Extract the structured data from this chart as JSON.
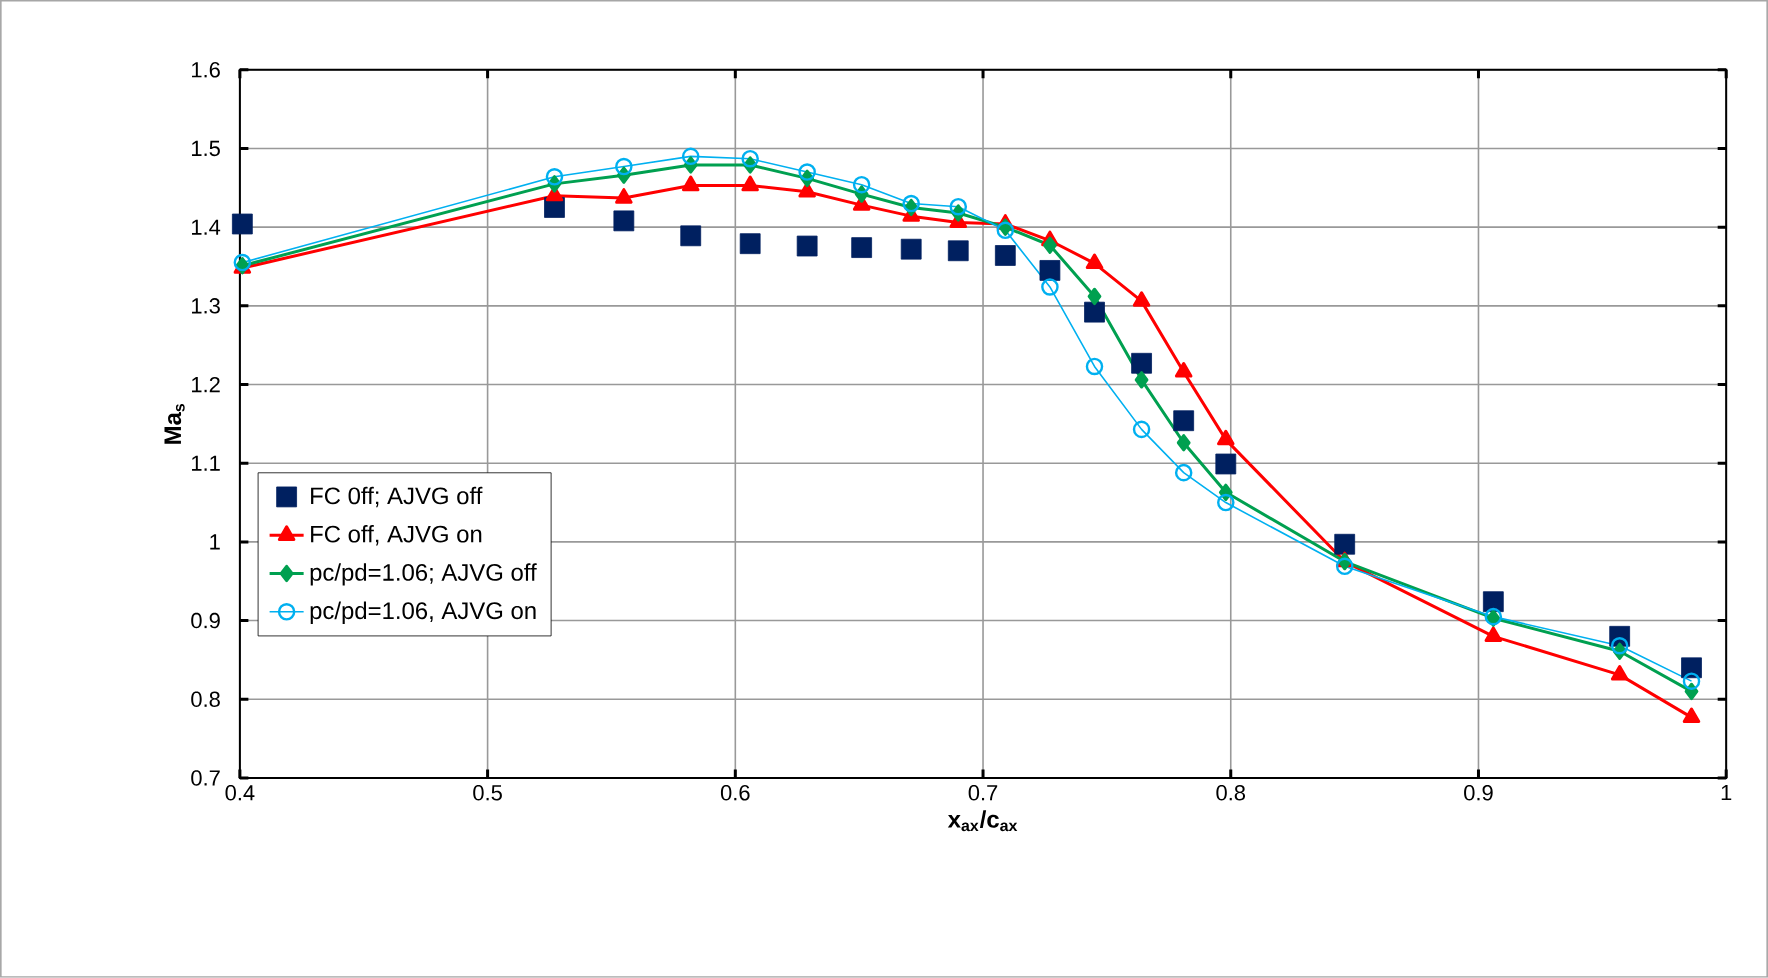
{
  "chart_data": {
    "type": "line",
    "xlabel": "x$_{ax}$/c$_{ax}$",
    "ylabel": "Ma$_{s}$",
    "x": [
      0.401,
      0.527,
      0.555,
      0.582,
      0.606,
      0.629,
      0.651,
      0.671,
      0.69,
      0.709,
      0.727,
      0.745,
      0.764,
      0.781,
      0.798,
      0.846,
      0.906,
      0.957,
      0.986
    ],
    "series": [
      {
        "name": "FC 0ff; AJVG off",
        "type": "scatter",
        "marker": "square",
        "color": "#002060",
        "values": [
          1.404,
          1.425,
          1.408,
          1.389,
          1.379,
          1.376,
          1.374,
          1.372,
          1.37,
          1.364,
          1.345,
          1.292,
          1.227,
          1.154,
          1.099,
          0.997,
          0.924,
          0.88,
          0.84
        ]
      },
      {
        "name": "FC off,  AJVG on",
        "marker": "triangle",
        "color": "#ff0000",
        "values": [
          1.348,
          1.44,
          1.437,
          1.453,
          1.453,
          1.445,
          1.428,
          1.414,
          1.406,
          1.404,
          1.383,
          1.354,
          1.306,
          1.216,
          1.13,
          0.975,
          0.88,
          0.831,
          0.777
        ]
      },
      {
        "name": "pc/pd=1.06; AJVG off",
        "marker": "diamond",
        "color": "#00a050",
        "values": [
          1.351,
          1.455,
          1.466,
          1.479,
          1.479,
          1.462,
          1.442,
          1.425,
          1.418,
          1.4,
          1.377,
          1.312,
          1.206,
          1.126,
          1.063,
          0.975,
          0.903,
          0.861,
          0.81
        ]
      },
      {
        "name": "pc/pd=1.06, AJVG on",
        "marker": "circle",
        "color": "#00b0f0",
        "values": [
          1.355,
          1.464,
          1.477,
          1.49,
          1.487,
          1.47,
          1.454,
          1.43,
          1.426,
          1.396,
          1.324,
          1.223,
          1.143,
          1.088,
          1.05,
          0.969,
          0.905,
          0.868,
          0.823
        ]
      }
    ],
    "xlim": [
      0.4,
      1
    ],
    "xticks": [
      0.4,
      0.5,
      0.6,
      0.7,
      0.8,
      0.9,
      1
    ],
    "ylim": [
      0.7,
      1.6
    ],
    "yticks": [
      0.7,
      0.8,
      0.9,
      1,
      1.1,
      1.2,
      1.3,
      1.4,
      1.5,
      1.6
    ],
    "grid": true,
    "legend": "left",
    "line_style": "solid"
  }
}
